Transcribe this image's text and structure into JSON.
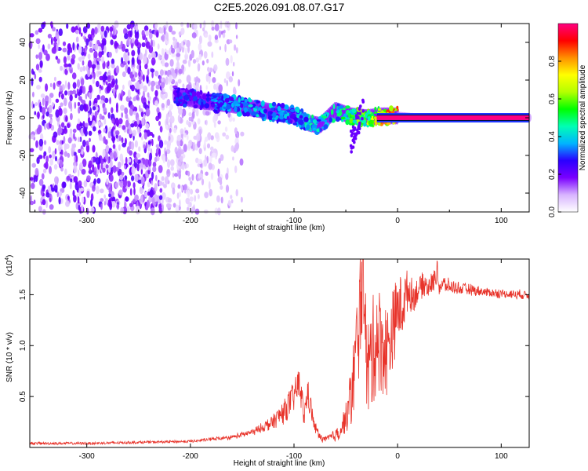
{
  "title": "C2E5.2026.091.08.07.G17",
  "chart_data": [
    {
      "type": "heatmap",
      "xlabel": "Height of straight line (km)",
      "ylabel": "Frequency (Hz)",
      "xlim": [
        -355,
        127
      ],
      "ylim": [
        -50,
        50
      ],
      "xticks": [
        -300,
        -200,
        -100,
        0,
        100
      ],
      "yticks": [
        -40,
        -20,
        0,
        20,
        40
      ],
      "colorbar": {
        "label": "Normalized spectral amplitude",
        "range": [
          0,
          1
        ],
        "ticks": [
          "0.0",
          "0.2",
          "0.4",
          "0.6",
          "0.8"
        ],
        "colors": [
          "#ffffff",
          "#d8b4ff",
          "#7a00ff",
          "#2a00ff",
          "#00b4ff",
          "#00ffb4",
          "#00ff00",
          "#b4ff00",
          "#ffff00",
          "#ff9000",
          "#ff0000",
          "#ff0080"
        ]
      },
      "noise_region_x": [
        -355,
        -150
      ],
      "signal_track": {
        "x": [
          -215,
          -190,
          -160,
          -140,
          -120,
          -100,
          -85,
          -75,
          -60,
          -45,
          -30,
          -15,
          0,
          20,
          40,
          80,
          127
        ],
        "frequency": [
          12,
          9,
          7,
          5,
          3,
          1,
          -3,
          -4,
          4,
          1,
          0,
          1,
          1,
          0,
          0,
          0,
          0
        ],
        "amplitude": [
          0.3,
          0.35,
          0.4,
          0.45,
          0.45,
          0.4,
          0.5,
          0.5,
          0.5,
          0.6,
          0.7,
          0.9,
          0.95,
          1.0,
          1.0,
          1.0,
          1.0
        ]
      }
    },
    {
      "type": "line",
      "xlabel": "Height of straight line (km)",
      "ylabel": "SNR (10 * v/v)",
      "yscale_label": "(x10",
      "yscale_exp": "4",
      "xlim": [
        -355,
        127
      ],
      "ylim": [
        0,
        18500
      ],
      "xticks": [
        -300,
        -200,
        -100,
        0,
        100
      ],
      "yticks": [
        0.5,
        1.0,
        1.5
      ],
      "ytick_labels": [
        "0.5",
        "1.0",
        "1.5"
      ],
      "ytick_multiplier": 10000,
      "series": [
        {
          "name": "SNR",
          "color": "#e8332a",
          "x": [
            -355,
            -300,
            -250,
            -200,
            -180,
            -160,
            -140,
            -130,
            -120,
            -110,
            -100,
            -95,
            -90,
            -87,
            -85,
            -82,
            -80,
            -77,
            -75,
            -70,
            -65,
            -60,
            -55,
            -50,
            -45,
            -40,
            -38,
            -35,
            -32,
            -30,
            -25,
            -20,
            -15,
            -10,
            -5,
            0,
            5,
            10,
            15,
            20,
            25,
            30,
            35,
            38,
            40,
            45,
            50,
            60,
            70,
            80,
            90,
            100,
            110,
            120,
            127
          ],
          "y": [
            400,
            400,
            500,
            600,
            800,
            1000,
            1500,
            2000,
            2500,
            3500,
            5000,
            6500,
            3000,
            5500,
            4500,
            3000,
            2000,
            1500,
            1000,
            800,
            1000,
            1200,
            1800,
            2800,
            5000,
            9000,
            12000,
            16000,
            18500,
            7000,
            9000,
            11000,
            10000,
            9500,
            11500,
            13500,
            14000,
            15500,
            14800,
            15500,
            16000,
            15800,
            16300,
            17500,
            15800,
            16000,
            15800,
            15600,
            15500,
            15300,
            15200,
            15100,
            15050,
            15000,
            15000
          ],
          "envelope": [
            0,
            0,
            0,
            0,
            100,
            150,
            300,
            400,
            800,
            1200,
            1500,
            1500,
            1200,
            1500,
            1300,
            800,
            600,
            400,
            300,
            300,
            400,
            600,
            900,
            1500,
            3000,
            5000,
            6000,
            6500,
            6000,
            5000,
            5500,
            5500,
            5000,
            4500,
            4000,
            3500,
            3000,
            2000,
            1500,
            1200,
            1200,
            1000,
            1000,
            1200,
            900,
            800,
            700,
            600,
            500,
            450,
            400,
            400,
            400,
            400,
            400
          ]
        }
      ]
    }
  ]
}
